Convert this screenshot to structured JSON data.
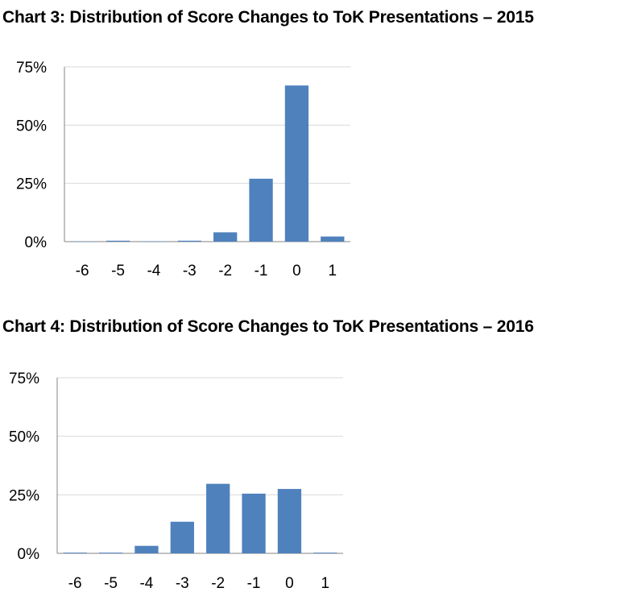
{
  "chart_data": [
    {
      "type": "bar",
      "title": "Chart 3: Distribution of Score Changes to ToK Presentations – 2015",
      "categories": [
        "-6",
        "-5",
        "-4",
        "-3",
        "-2",
        "-1",
        "0",
        "1"
      ],
      "values": [
        0.0,
        0.4,
        0.1,
        0.4,
        4.0,
        27.0,
        67.0,
        2.2
      ],
      "ylim": [
        0,
        75
      ],
      "yticks": [
        0,
        25,
        50,
        75
      ],
      "ytick_labels": [
        "0%",
        "25%",
        "50%",
        "75%"
      ],
      "xlabel": "",
      "ylabel": "",
      "grid": true,
      "color": "#4f81bd"
    },
    {
      "type": "bar",
      "title": "Chart 4: Distribution of Score Changes to ToK Presentations – 2016",
      "categories": [
        "-6",
        "-5",
        "-4",
        "-3",
        "-2",
        "-1",
        "0",
        "1"
      ],
      "values": [
        0.3,
        0.3,
        3.2,
        13.5,
        29.7,
        25.5,
        27.5,
        0.3
      ],
      "ylim": [
        0,
        75
      ],
      "yticks": [
        0,
        25,
        50,
        75
      ],
      "ytick_labels": [
        "0%",
        "25%",
        "50%",
        "75%"
      ],
      "xlabel": "",
      "ylabel": "",
      "grid": true,
      "color": "#4f81bd"
    }
  ]
}
